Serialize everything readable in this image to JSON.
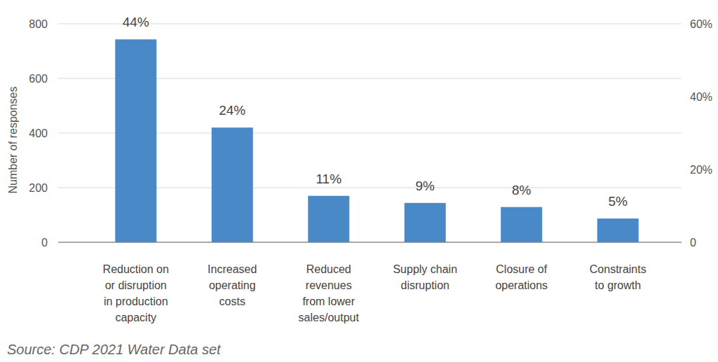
{
  "chart_data": {
    "type": "bar",
    "categories": [
      "Reduction on\nor disruption\nin production\ncapacity",
      "Increased\noperating\ncosts",
      "Reduced\nrevenues\nfrom lower\nsales/output",
      "Supply chain\ndisruption",
      "Closure of\noperations",
      "Constraints\nto growth"
    ],
    "values": [
      743,
      420,
      170,
      144,
      129,
      87
    ],
    "shares": [
      44,
      24,
      11,
      9,
      8,
      5
    ],
    "share_labels": [
      "44%",
      "24%",
      "11%",
      "9%",
      "8%",
      "5%"
    ],
    "color": "#4a89c8",
    "ylabel": "Number of responses",
    "ylim": [
      0,
      800
    ],
    "yticks": [
      0,
      200,
      400,
      600,
      800
    ],
    "y2lim": [
      0,
      60
    ],
    "y2ticks": [
      0,
      {
        "value": 20,
        "label": "20%"
      },
      {
        "value": 40,
        "label": "40%"
      },
      {
        "value": 60,
        "label": "60%"
      }
    ],
    "grid": true,
    "source": "Source: CDP 2021 Water Data set"
  }
}
